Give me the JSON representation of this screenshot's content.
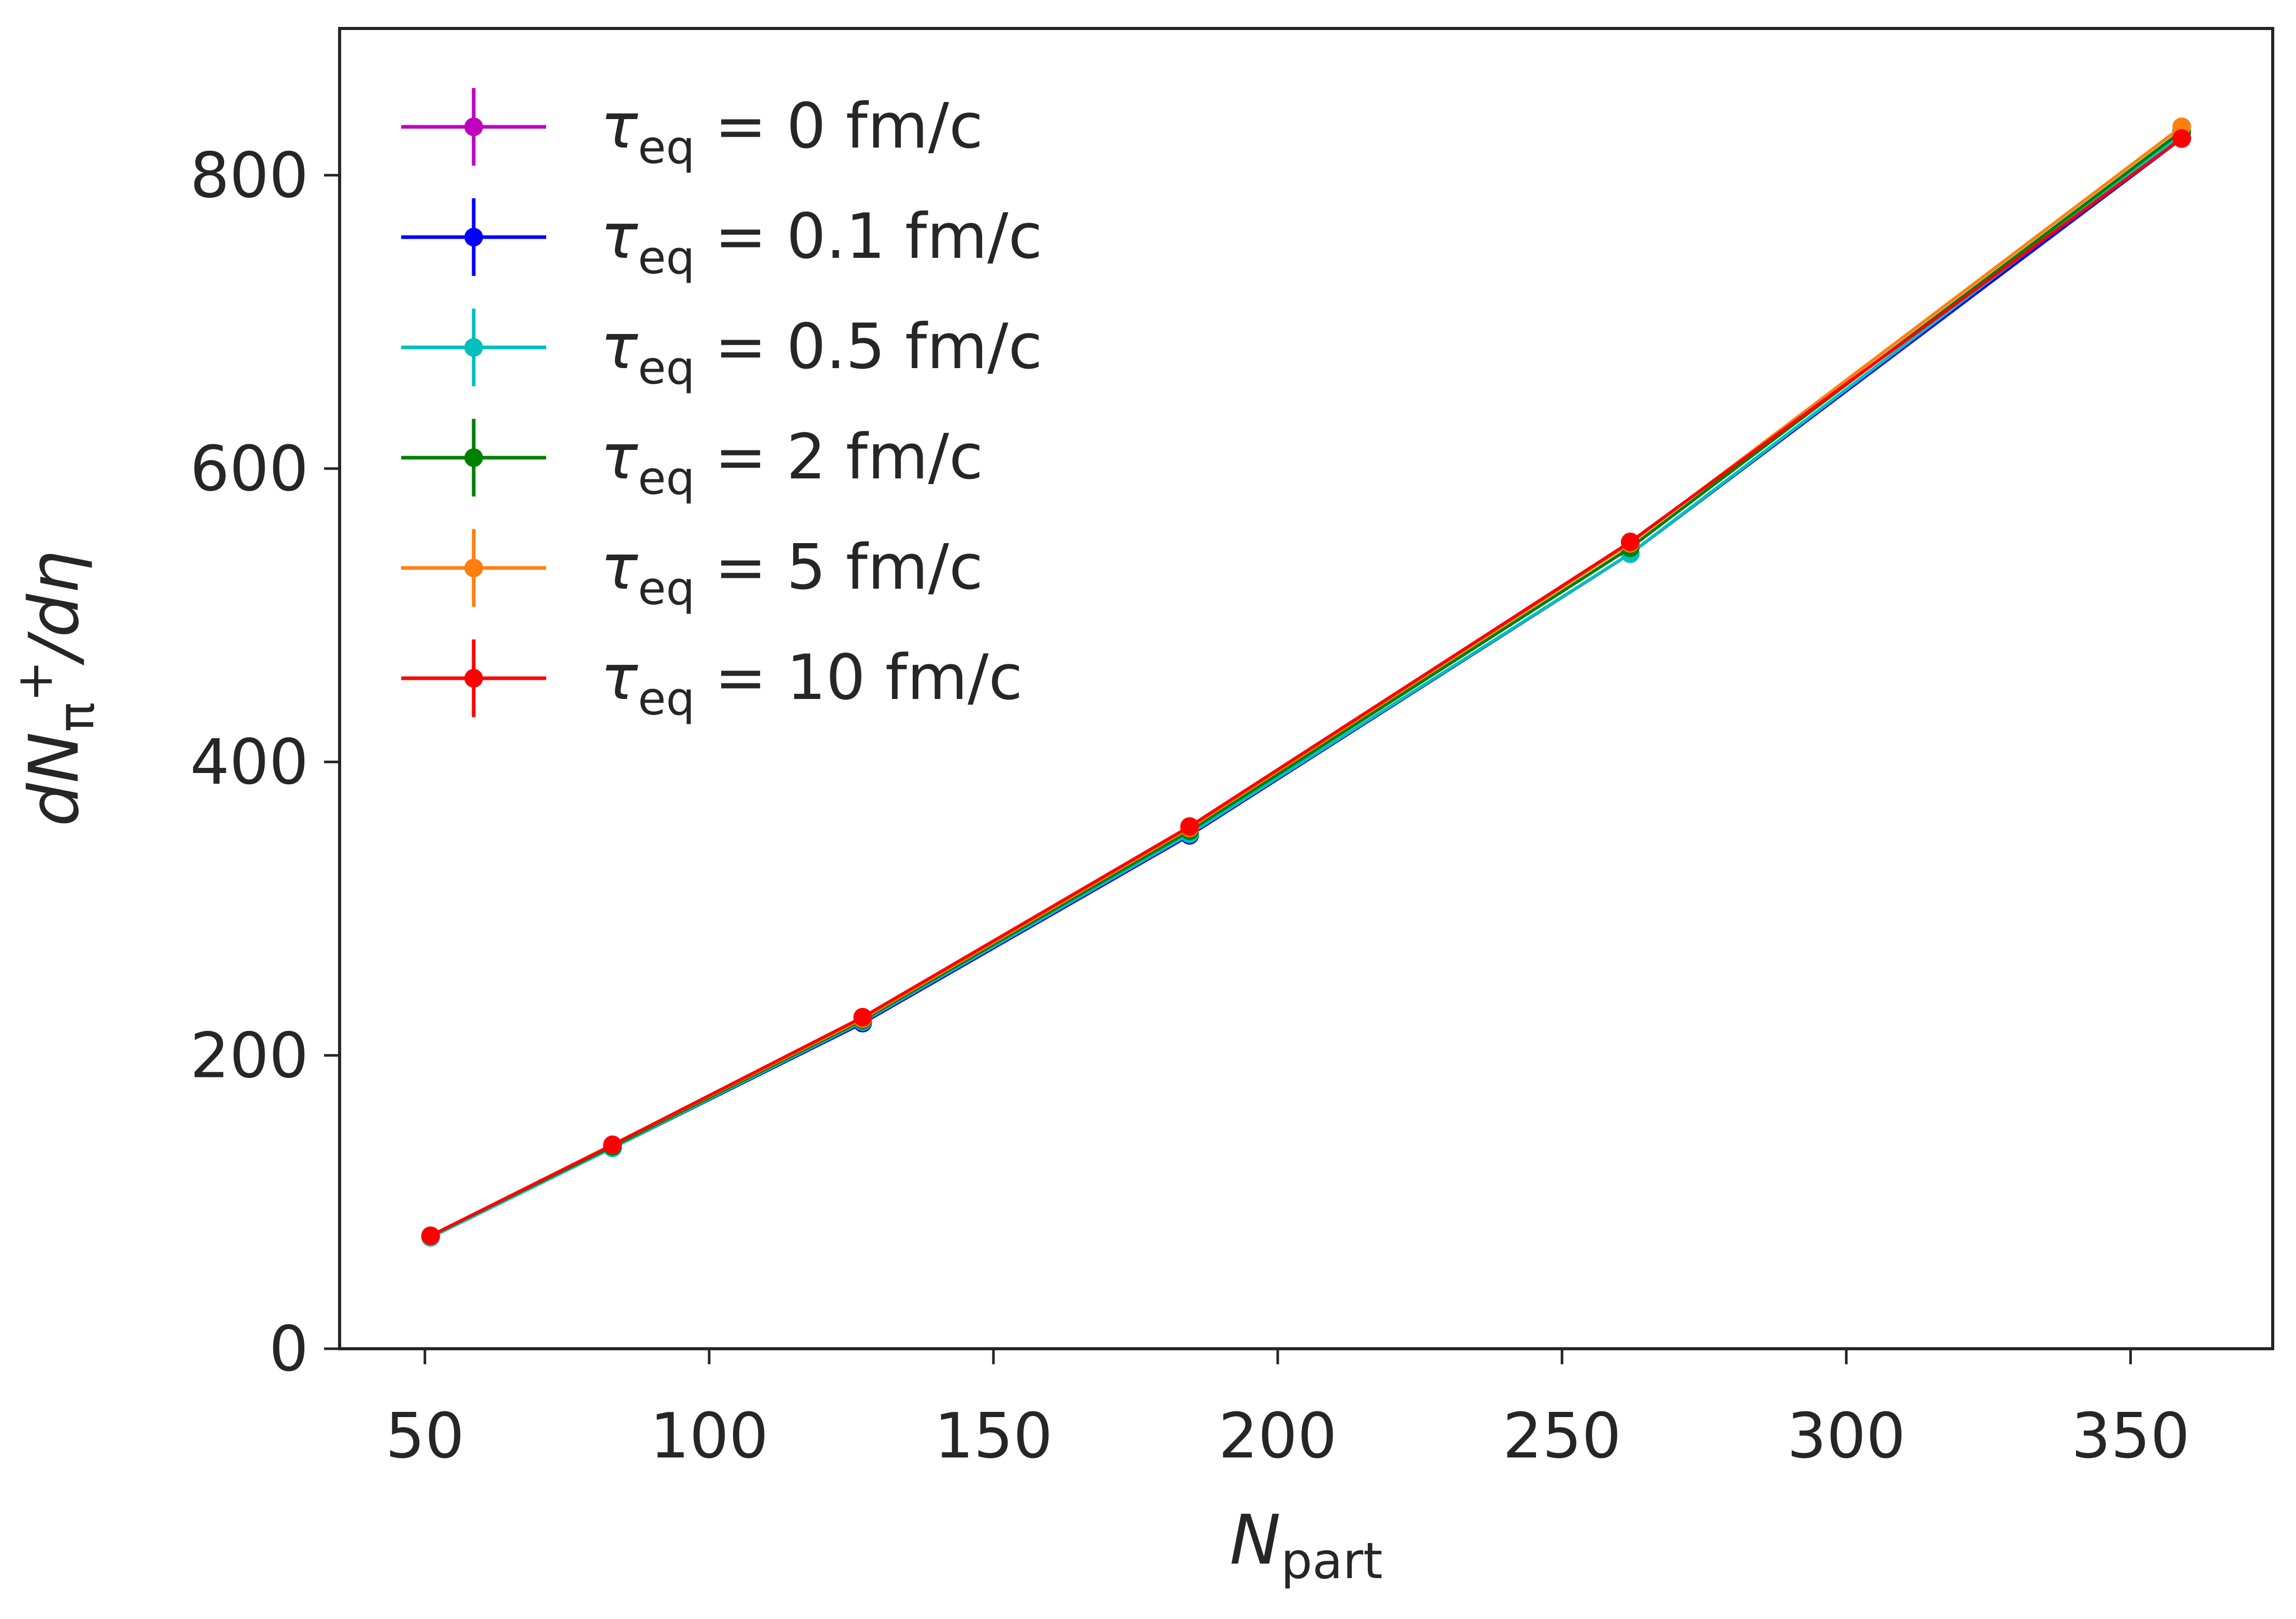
{
  "chart_data": {
    "type": "line",
    "title": "",
    "xlabel": {
      "main": "N",
      "sub": "part"
    },
    "ylabel": {
      "main": "dN",
      "sub": "π",
      "sup": "+",
      "tail": "/dη"
    },
    "xlim": [
      35,
      375
    ],
    "ylim": [
      0,
      900
    ],
    "xticks": [
      50,
      100,
      150,
      200,
      250,
      300,
      350
    ],
    "yticks": [
      0,
      200,
      400,
      600,
      800
    ],
    "grid": false,
    "legend_position": "top-left",
    "x": [
      51,
      83,
      127,
      184.5,
      262,
      359
    ],
    "series": [
      {
        "name": "τeq = 0 fm/c",
        "label_main": "τ",
        "label_sub": "eq",
        "label_rest": " = 0 fm/c",
        "color": "#bf00bf",
        "values": [
          76,
          137,
          222,
          350,
          542,
          826
        ]
      },
      {
        "name": "τeq = 0.1 fm/c",
        "label_main": "τ",
        "label_sub": "eq",
        "label_rest": " = 0.1 fm/c",
        "color": "#0000ff",
        "values": [
          76,
          137,
          222,
          350,
          542,
          825
        ]
      },
      {
        "name": "τeq = 0.5 fm/c",
        "label_main": "τ",
        "label_sub": "eq",
        "label_rest": " = 0.5 fm/c",
        "color": "#00bfbf",
        "values": [
          76,
          137,
          223,
          351,
          542,
          828
        ]
      },
      {
        "name": "τeq = 2 fm/c",
        "label_main": "τ",
        "label_sub": "eq",
        "label_rest": " = 2 fm/c",
        "color": "#008000",
        "values": [
          77,
          138,
          224,
          353,
          546,
          830
        ]
      },
      {
        "name": "τeq = 5 fm/c",
        "label_main": "τ",
        "label_sub": "eq",
        "label_rest": " = 5 fm/c",
        "color": "#ff7f0e",
        "values": [
          77,
          139,
          225,
          355,
          549,
          833
        ]
      },
      {
        "name": "τeq = 10 fm/c",
        "label_main": "τ",
        "label_sub": "eq",
        "label_rest": " = 10 fm/c",
        "color": "#ff0000",
        "values": [
          77,
          139,
          226,
          356,
          550,
          825
        ]
      }
    ]
  }
}
